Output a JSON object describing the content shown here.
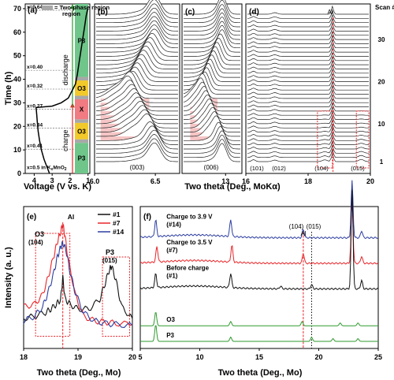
{
  "colors": {
    "p3": "#6fc58a",
    "o3": "#f2c92b",
    "x": "#f07b82",
    "two_phase": "#a8a8a8",
    "shade": "#f4b6b6",
    "al_line": "#e8262a",
    "scan1": "#111111",
    "scan7": "#e8262a",
    "scan14": "#2c3ea0",
    "ref_o3": "#2e9a2e",
    "ref_p3": "#2e9a2e"
  },
  "chart_data": [
    {
      "panel": "(a)",
      "type": "line",
      "xlabel": "Voltage (V vs. K)",
      "ylabel": "Time (h)",
      "xlim": [
        4.5,
        0.9
      ],
      "ylim": [
        0,
        72
      ],
      "xticks": [
        4,
        3,
        2,
        1
      ],
      "yticks": [
        0,
        10,
        20,
        30,
        40,
        50,
        60,
        70
      ],
      "legend": "= Two-phase region",
      "composition_labels": [
        {
          "text": "x=0.5 in KxMnO2",
          "time": 1.5
        },
        {
          "text": "x=0.41",
          "time": 11
        },
        {
          "text": "x=0.34",
          "time": 20
        },
        {
          "text": "x=0.27",
          "time": 28
        },
        {
          "text": "x=0.32",
          "time": 36.5
        },
        {
          "text": "x=0.40",
          "time": 44.5
        },
        {
          "text": "x=0.64",
          "time": 70
        }
      ],
      "phase_regions": [
        {
          "label": "P3",
          "from": 0,
          "to": 13,
          "kind": "p3"
        },
        {
          "label": "",
          "from": 13,
          "to": 14.5,
          "kind": "two_phase"
        },
        {
          "label": "O3",
          "from": 14.5,
          "to": 21.5,
          "kind": "o3"
        },
        {
          "label": "",
          "from": 21.5,
          "to": 23,
          "kind": "two_phase"
        },
        {
          "label": "X",
          "from": 23,
          "to": 31.5,
          "kind": "x"
        },
        {
          "label": "",
          "from": 31.5,
          "to": 33,
          "kind": "two_phase"
        },
        {
          "label": "O3",
          "from": 33,
          "to": 39.5,
          "kind": "o3"
        },
        {
          "label": "",
          "from": 39.5,
          "to": 41,
          "kind": "two_phase"
        },
        {
          "label": "P3",
          "from": 41,
          "to": 72,
          "kind": "p3"
        }
      ],
      "arrows": [
        {
          "label": "charge",
          "from": 0,
          "to": 28
        },
        {
          "label": "discharge",
          "from": 28,
          "to": 72
        }
      ],
      "series": [
        {
          "x": [
            3.15,
            3.3,
            3.45,
            3.6,
            3.7,
            3.78,
            3.83,
            3.86,
            3.88,
            3.9,
            3.0,
            2.5,
            2.1,
            1.9,
            1.7,
            1.6,
            1.5,
            1.4,
            1.3,
            1.2,
            1.1,
            1.02
          ],
          "y": [
            0,
            3,
            6,
            10,
            14,
            18,
            22,
            25,
            27,
            28,
            28.6,
            30,
            32,
            35,
            38,
            42,
            47,
            52,
            57,
            62,
            67,
            70
          ]
        }
      ]
    },
    {
      "panel": "(b)",
      "type": "line",
      "xlim": [
        6.0,
        6.7
      ],
      "xticks": [
        6.0,
        6.5
      ],
      "xtick_labels": [
        "6.0",
        "6.5"
      ],
      "annotation": "(003)",
      "shaded": {
        "x": [
          6.05,
          6.45
        ],
        "scan": [
          6,
          16
        ]
      }
    },
    {
      "panel": "(c)",
      "type": "line",
      "xlim": [
        12.2,
        13.3
      ],
      "xticks": [
        13
      ],
      "xtick_labels": [
        "13"
      ],
      "annotation": "(006)",
      "shaded": {
        "x": [
          12.35,
          12.85
        ],
        "scan": [
          6,
          16
        ]
      }
    },
    {
      "panel": "(d)",
      "type": "line",
      "xlim": [
        16,
        20
      ],
      "xticks": [
        16,
        18,
        20
      ],
      "xtick_labels": [
        "16",
        "18",
        "20"
      ],
      "annotations": [
        "(101)",
        "(012)",
        "(104)",
        "(015)"
      ],
      "al_label": "Al",
      "al_x": 18.8,
      "scan_label": "Scan #",
      "scan_ticks": [
        1,
        10,
        20,
        30
      ],
      "boxes": [
        {
          "x": [
            18.3,
            18.78
          ],
          "scan": [
            1,
            13
          ]
        },
        {
          "x": [
            19.55,
            19.95
          ],
          "scan": [
            1,
            13
          ]
        }
      ]
    },
    {
      "panel": "(e)",
      "type": "line",
      "xlabel": "Two theta (Deg., Mo)",
      "xlim": [
        18,
        20
      ],
      "xticks": [
        18,
        19,
        20
      ],
      "al_label": "Al",
      "al_x": 18.72,
      "box_labels": [
        "O3",
        "(104)",
        "P3",
        "(015)"
      ],
      "series": [
        {
          "name": "#1",
          "color_key": "scan1",
          "x": [
            18.0,
            18.2,
            18.4,
            18.5,
            18.6,
            18.68,
            18.72,
            18.76,
            18.85,
            19.0,
            19.2,
            19.4,
            19.5,
            19.58,
            19.62,
            19.7,
            19.8,
            20.0
          ],
          "y": [
            0.2,
            0.22,
            0.25,
            0.28,
            0.32,
            0.36,
            0.55,
            0.37,
            0.32,
            0.28,
            0.28,
            0.36,
            0.5,
            0.62,
            0.64,
            0.52,
            0.3,
            0.2
          ]
        },
        {
          "name": "#7",
          "color_key": "scan7",
          "x": [
            18.0,
            18.2,
            18.35,
            18.45,
            18.55,
            18.62,
            18.68,
            18.72,
            18.76,
            18.82,
            18.95,
            19.1,
            19.3,
            19.5,
            19.7,
            20.0
          ],
          "y": [
            0.3,
            0.32,
            0.4,
            0.55,
            0.72,
            0.85,
            0.93,
            1.0,
            0.9,
            0.7,
            0.4,
            0.22,
            0.18,
            0.17,
            0.16,
            0.15
          ]
        },
        {
          "name": "#14",
          "color_key": "scan14",
          "x": [
            18.0,
            18.2,
            18.35,
            18.45,
            18.55,
            18.62,
            18.68,
            18.72,
            18.78,
            18.85,
            18.95,
            19.1,
            19.3,
            19.5,
            19.7,
            20.0
          ],
          "y": [
            0.18,
            0.22,
            0.3,
            0.42,
            0.58,
            0.72,
            0.8,
            0.84,
            0.78,
            0.6,
            0.42,
            0.25,
            0.18,
            0.16,
            0.15,
            0.14
          ]
        }
      ]
    },
    {
      "panel": "(f)",
      "type": "line",
      "xlabel": "Two theta (Deg., Mo)",
      "xlim": [
        5,
        25
      ],
      "xticks": [
        5,
        10,
        15,
        20,
        25
      ],
      "annotations": [
        "(104)",
        "(015)"
      ],
      "al_label": "Al",
      "al_x": 18.7,
      "dotted_x": 19.4,
      "series": [
        {
          "name": "Charge to 3.9 V\n(#14)",
          "color_key": "scan14",
          "offset": 0.78,
          "peaks": [
            [
              6.3,
              0.12
            ],
            [
              12.6,
              0.12
            ],
            [
              18.7,
              0.06
            ],
            [
              22.8,
              0.4
            ],
            [
              23.6,
              0.05
            ]
          ]
        },
        {
          "name": "Charge to 3.5 V\n(#7)",
          "color_key": "scan7",
          "offset": 0.6,
          "peaks": [
            [
              6.4,
              0.11
            ],
            [
              12.7,
              0.12
            ],
            [
              18.7,
              0.07
            ],
            [
              22.8,
              0.45
            ],
            [
              23.6,
              0.05
            ]
          ]
        },
        {
          "name": "Before charge\n(#1)",
          "color_key": "scan1",
          "offset": 0.42,
          "peaks": [
            [
              6.3,
              0.1
            ],
            [
              12.6,
              0.1
            ],
            [
              16.8,
              0.02
            ],
            [
              19.4,
              0.03
            ],
            [
              22.8,
              0.7
            ],
            [
              23.6,
              0.06
            ]
          ]
        },
        {
          "name": "O3",
          "color_key": "ref_o3",
          "offset": 0.16,
          "peaks": [
            [
              6.3,
              0.1
            ],
            [
              12.6,
              0.03
            ],
            [
              18.6,
              0.03
            ],
            [
              21.8,
              0.02
            ],
            [
              23.3,
              0.02
            ]
          ]
        },
        {
          "name": "P3",
          "color_key": "ref_p3",
          "offset": 0.05,
          "peaks": [
            [
              6.3,
              0.12
            ],
            [
              12.6,
              0.03
            ],
            [
              19.4,
              0.03
            ],
            [
              21.2,
              0.02
            ],
            [
              23.3,
              0.02
            ]
          ]
        }
      ]
    }
  ],
  "shared": {
    "bcd_xlabel": "Two theta (Deg., MoKα)",
    "ef_ylabel": "Intensity (a. u.)"
  }
}
